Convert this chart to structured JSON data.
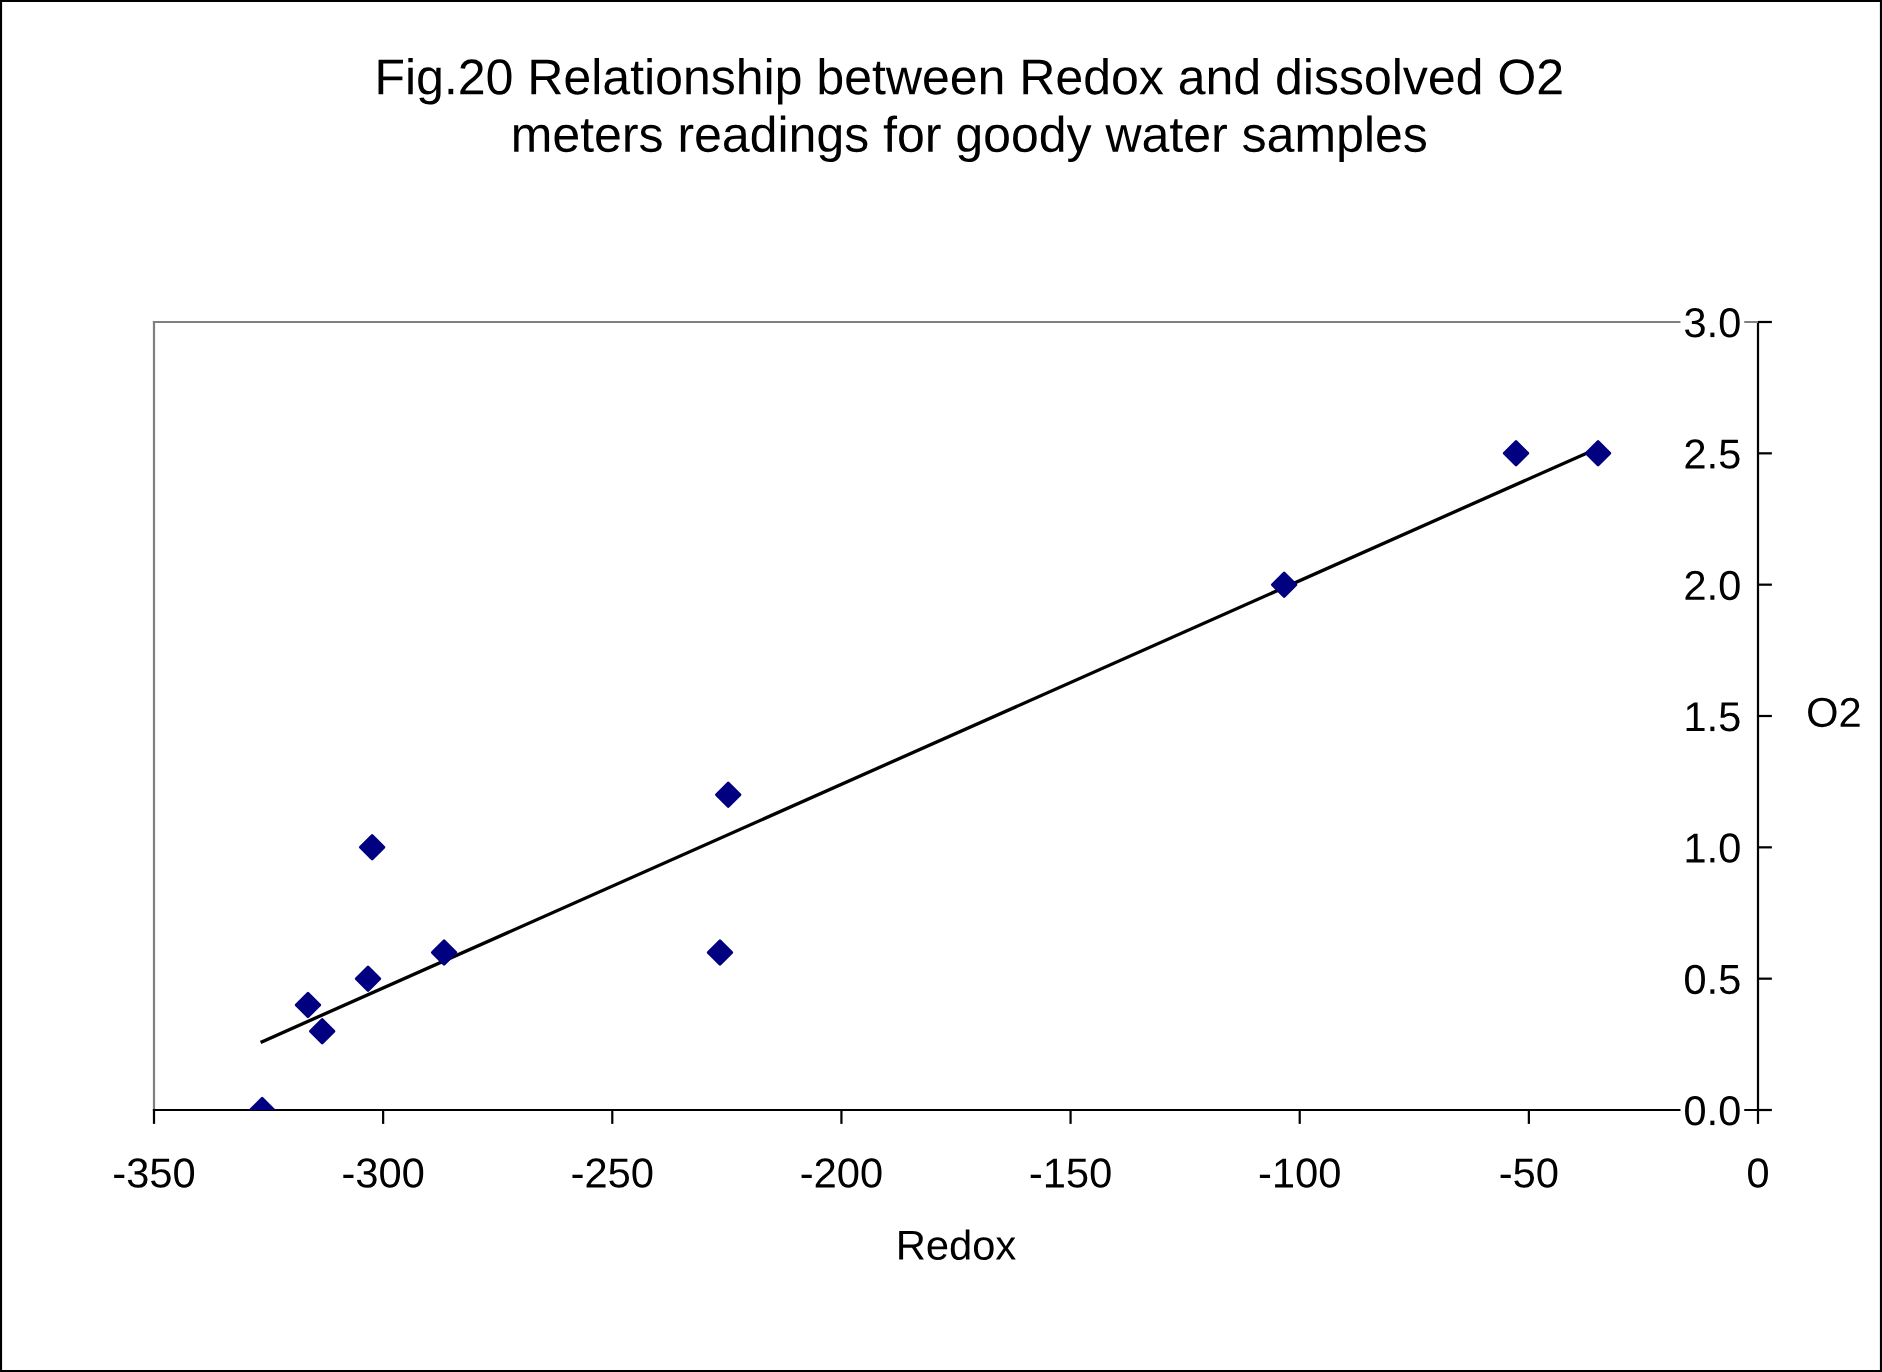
{
  "chart_data": {
    "type": "scatter",
    "title": "Fig.20 Relationship between Redox and dissolved O2\nmeters readings for goody water samples",
    "xlabel": "Redox",
    "ylabel": "O2",
    "xlim": [
      -350,
      0
    ],
    "xticks": [
      -350,
      -300,
      -250,
      -200,
      -150,
      -100,
      -50,
      0
    ],
    "ylim": [
      0,
      3.0
    ],
    "yticks": [
      {
        "value": 0,
        "label": "0.0"
      },
      {
        "value": 0.5,
        "label": "0.5"
      },
      {
        "value": 1.0,
        "label": "1.0"
      },
      {
        "value": 1.5,
        "label": "1.5"
      },
      {
        "value": 2.0,
        "label": "2.0"
      },
      {
        "value": 2.5,
        "label": "2.5"
      },
      {
        "value": 3.0,
        "label": "3.0"
      }
    ],
    "grid": false,
    "legend": false,
    "marker": "diamond",
    "series": [
      {
        "color": "#000080",
        "x": [
          -326.4,
          -316.4,
          -313.3,
          -303.3,
          -302.4,
          -286.7,
          -226.5,
          -224.7,
          -103.4,
          -52.8,
          -34.9
        ],
        "values": [
          0,
          0.4,
          0.3,
          0.5,
          1.0,
          0.6,
          0.6,
          1.2,
          2.0,
          2.5,
          2.5
        ]
      },
      {
        "type": "line",
        "color": "#000000",
        "marker": "none",
        "x": [
          -326.4,
          -34.9
        ],
        "values": [
          0.26,
          2.52
        ]
      }
    ]
  }
}
